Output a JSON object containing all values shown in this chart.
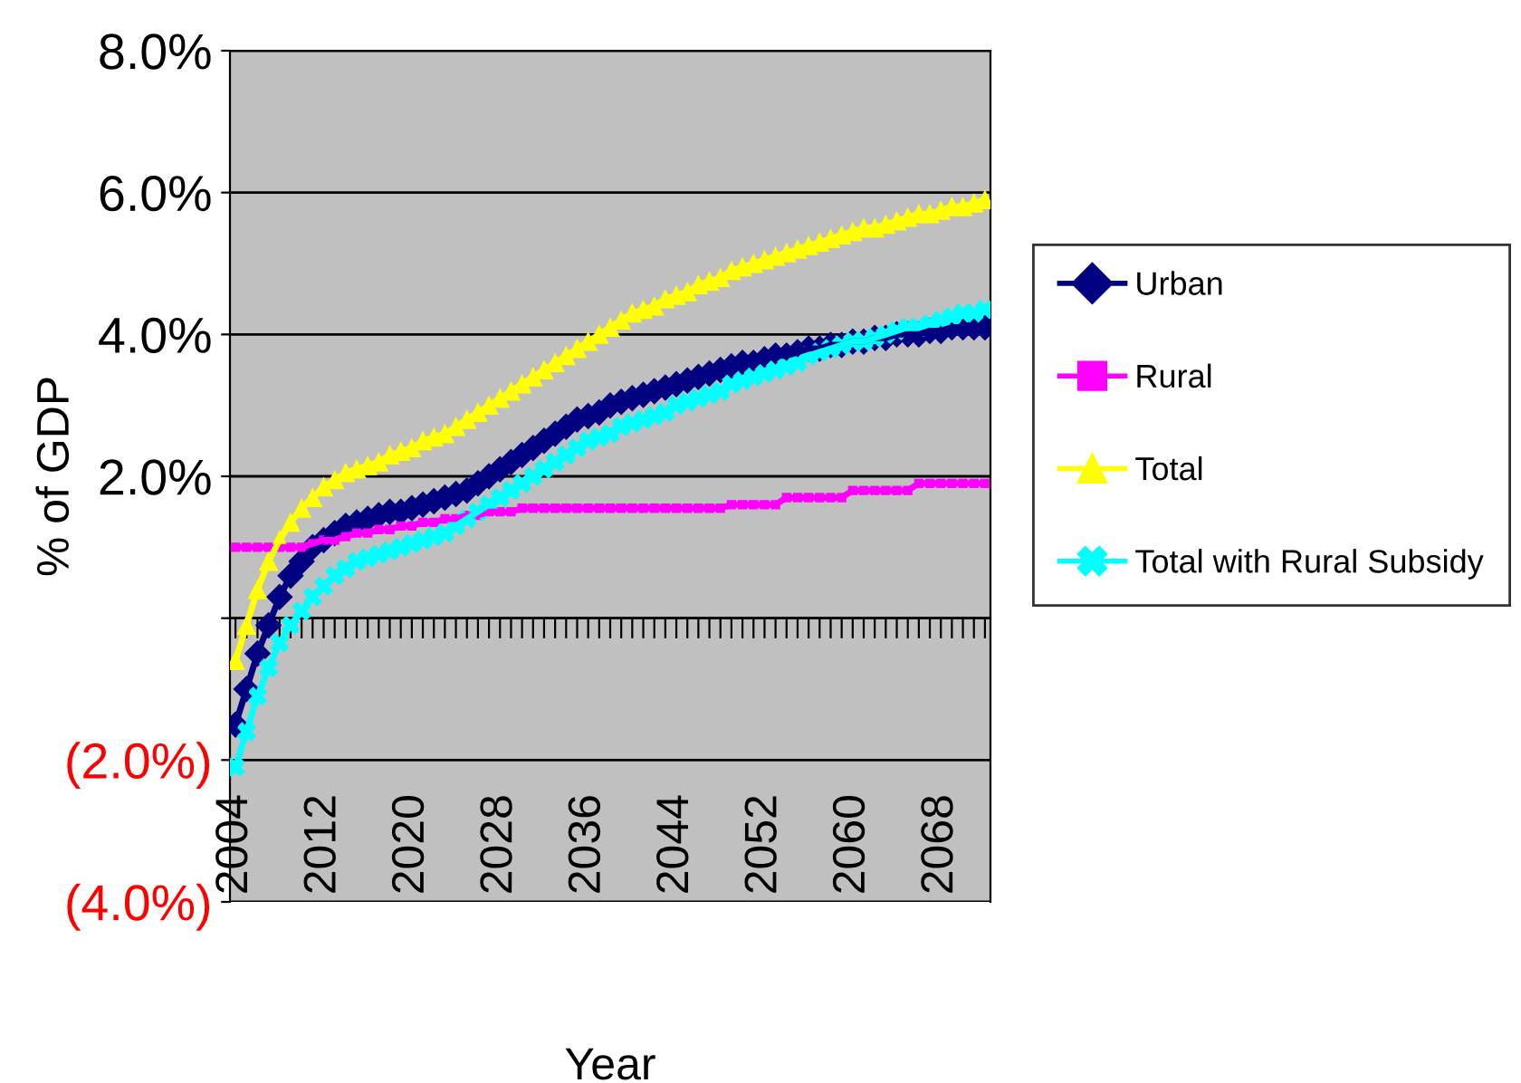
{
  "chart_data": {
    "type": "line",
    "xlabel": "Year",
    "ylabel": "% of GDP",
    "categories": [
      "2004",
      null,
      null,
      null,
      null,
      null,
      null,
      null,
      "2012",
      null,
      null,
      null,
      null,
      null,
      null,
      null,
      "2020",
      null,
      null,
      null,
      null,
      null,
      null,
      null,
      "2028",
      null,
      null,
      null,
      null,
      null,
      null,
      null,
      "2036",
      null,
      null,
      null,
      null,
      null,
      null,
      null,
      "2044",
      null,
      null,
      null,
      null,
      null,
      null,
      null,
      "2052",
      null,
      null,
      null,
      null,
      null,
      null,
      null,
      "2060",
      null,
      null,
      null,
      null,
      null,
      null,
      null,
      "2068",
      null,
      null,
      null,
      null
    ],
    "series": [
      {
        "name": "Urban",
        "color": "#000080",
        "marker": "diamond",
        "values": [
          -1.5,
          -1.0,
          -0.5,
          -0.1,
          0.3,
          0.6,
          0.8,
          1.0,
          1.1,
          1.2,
          1.3,
          1.35,
          1.4,
          1.45,
          1.5,
          1.5,
          1.55,
          1.6,
          1.65,
          1.7,
          1.75,
          1.8,
          1.9,
          2.0,
          2.1,
          2.2,
          2.3,
          2.4,
          2.5,
          2.6,
          2.7,
          2.8,
          2.85,
          2.9,
          3.0,
          3.05,
          3.1,
          3.15,
          3.2,
          3.25,
          3.3,
          3.35,
          3.4,
          3.45,
          3.5,
          3.55,
          3.6,
          3.6,
          3.65,
          3.7,
          3.7,
          3.75,
          3.8,
          3.8,
          3.85,
          3.85,
          3.9,
          3.9,
          3.95,
          3.95,
          4.0,
          4.0,
          4.0,
          4.05,
          4.05,
          4.1,
          4.1,
          4.1,
          4.1
        ]
      },
      {
        "name": "Rural",
        "color": "#ff00ff",
        "marker": "square",
        "values": [
          1.0,
          1.0,
          1.0,
          1.0,
          1.0,
          1.0,
          1.0,
          1.05,
          1.1,
          1.1,
          1.15,
          1.2,
          1.2,
          1.25,
          1.25,
          1.3,
          1.3,
          1.35,
          1.35,
          1.4,
          1.4,
          1.45,
          1.45,
          1.5,
          1.5,
          1.5,
          1.55,
          1.55,
          1.55,
          1.55,
          1.55,
          1.55,
          1.55,
          1.55,
          1.55,
          1.55,
          1.55,
          1.55,
          1.55,
          1.55,
          1.55,
          1.55,
          1.55,
          1.55,
          1.55,
          1.6,
          1.6,
          1.6,
          1.6,
          1.6,
          1.7,
          1.7,
          1.7,
          1.7,
          1.7,
          1.7,
          1.8,
          1.8,
          1.8,
          1.8,
          1.8,
          1.8,
          1.9,
          1.9,
          1.9,
          1.9,
          1.9,
          1.9,
          1.9
        ]
      },
      {
        "name": "Total",
        "color": "#ffff00",
        "marker": "triangle",
        "values": [
          -0.6,
          -0.1,
          0.4,
          0.8,
          1.1,
          1.35,
          1.55,
          1.7,
          1.85,
          1.95,
          2.05,
          2.1,
          2.15,
          2.2,
          2.3,
          2.35,
          2.4,
          2.5,
          2.55,
          2.6,
          2.7,
          2.8,
          2.9,
          3.0,
          3.1,
          3.2,
          3.3,
          3.4,
          3.5,
          3.6,
          3.7,
          3.8,
          3.9,
          4.0,
          4.1,
          4.2,
          4.3,
          4.35,
          4.4,
          4.5,
          4.55,
          4.6,
          4.7,
          4.75,
          4.8,
          4.9,
          4.95,
          5.0,
          5.05,
          5.1,
          5.15,
          5.2,
          5.25,
          5.3,
          5.35,
          5.4,
          5.45,
          5.5,
          5.5,
          5.55,
          5.6,
          5.65,
          5.7,
          5.7,
          5.75,
          5.8,
          5.8,
          5.85,
          5.9
        ]
      },
      {
        "name": "Total with Rural Subsidy",
        "color": "#00ffff",
        "marker": "cross",
        "values": [
          -2.1,
          -1.6,
          -1.1,
          -0.7,
          -0.35,
          -0.1,
          0.1,
          0.3,
          0.45,
          0.6,
          0.7,
          0.8,
          0.85,
          0.9,
          0.95,
          1.0,
          1.05,
          1.1,
          1.15,
          1.2,
          1.3,
          1.4,
          1.5,
          1.6,
          1.7,
          1.8,
          1.9,
          2.0,
          2.1,
          2.2,
          2.3,
          2.4,
          2.5,
          2.55,
          2.6,
          2.7,
          2.75,
          2.8,
          2.85,
          2.9,
          3.0,
          3.05,
          3.1,
          3.15,
          3.2,
          3.3,
          3.35,
          3.4,
          3.45,
          3.5,
          3.55,
          3.6,
          3.7,
          3.75,
          3.8,
          3.85,
          3.9,
          3.9,
          3.95,
          4.0,
          4.05,
          4.1,
          4.1,
          4.15,
          4.2,
          4.25,
          4.3,
          4.3,
          4.35
        ]
      }
    ],
    "ylim": [
      -4,
      8
    ],
    "yticks": [
      {
        "value": -4,
        "label": "(4.0%)"
      },
      {
        "value": -2,
        "label": "(2.0%)"
      },
      {
        "value": 0,
        "label": null
      },
      {
        "value": 2,
        "label": "2.0%"
      },
      {
        "value": 4,
        "label": "4.0%"
      },
      {
        "value": 6,
        "label": "6.0%"
      },
      {
        "value": 8,
        "label": "8.0%"
      }
    ],
    "grid": "y",
    "legend": "right",
    "line_style": "solid"
  }
}
